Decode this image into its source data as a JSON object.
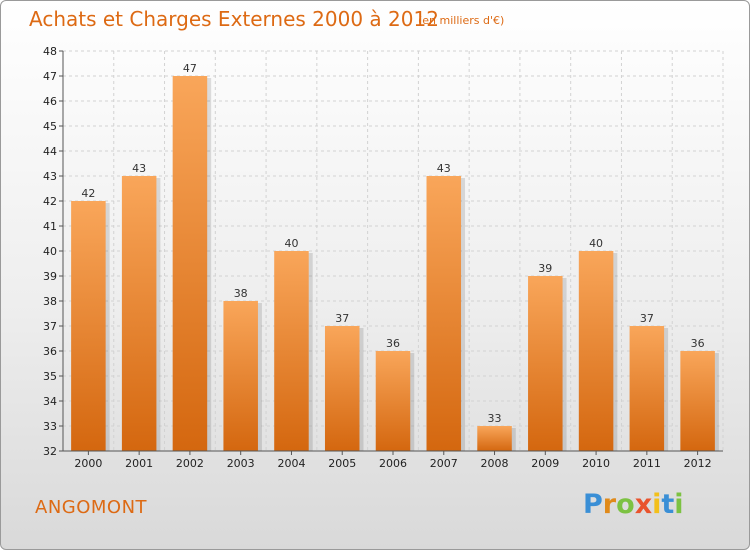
{
  "chart_data": {
    "type": "bar",
    "title": "Achats et Charges Externes 2000 à 2012",
    "subtitle": "(en milliers d'€)",
    "categories": [
      "2000",
      "2001",
      "2002",
      "2003",
      "2004",
      "2005",
      "2006",
      "2007",
      "2008",
      "2009",
      "2010",
      "2011",
      "2012"
    ],
    "values": [
      42,
      43,
      47,
      38,
      40,
      37,
      36,
      43,
      33,
      39,
      40,
      37,
      36
    ],
    "ylim": [
      32,
      48
    ],
    "yticks": [
      32,
      33,
      34,
      35,
      36,
      37,
      38,
      39,
      40,
      41,
      42,
      43,
      44,
      45,
      46,
      47,
      48
    ],
    "xlabel": "",
    "ylabel": "",
    "grid": true,
    "bar_color_top": "#f9a65a",
    "bar_color_bottom": "#d4670f"
  },
  "place": "ANGOMONT",
  "brand": {
    "letters": [
      "P",
      "r",
      "o",
      "x",
      "i",
      "t",
      "i"
    ],
    "colors": [
      "#3a8fd6",
      "#e08a1a",
      "#7cc242",
      "#e9532d",
      "#f3c01b",
      "#3a8fd6",
      "#7cc242"
    ]
  }
}
